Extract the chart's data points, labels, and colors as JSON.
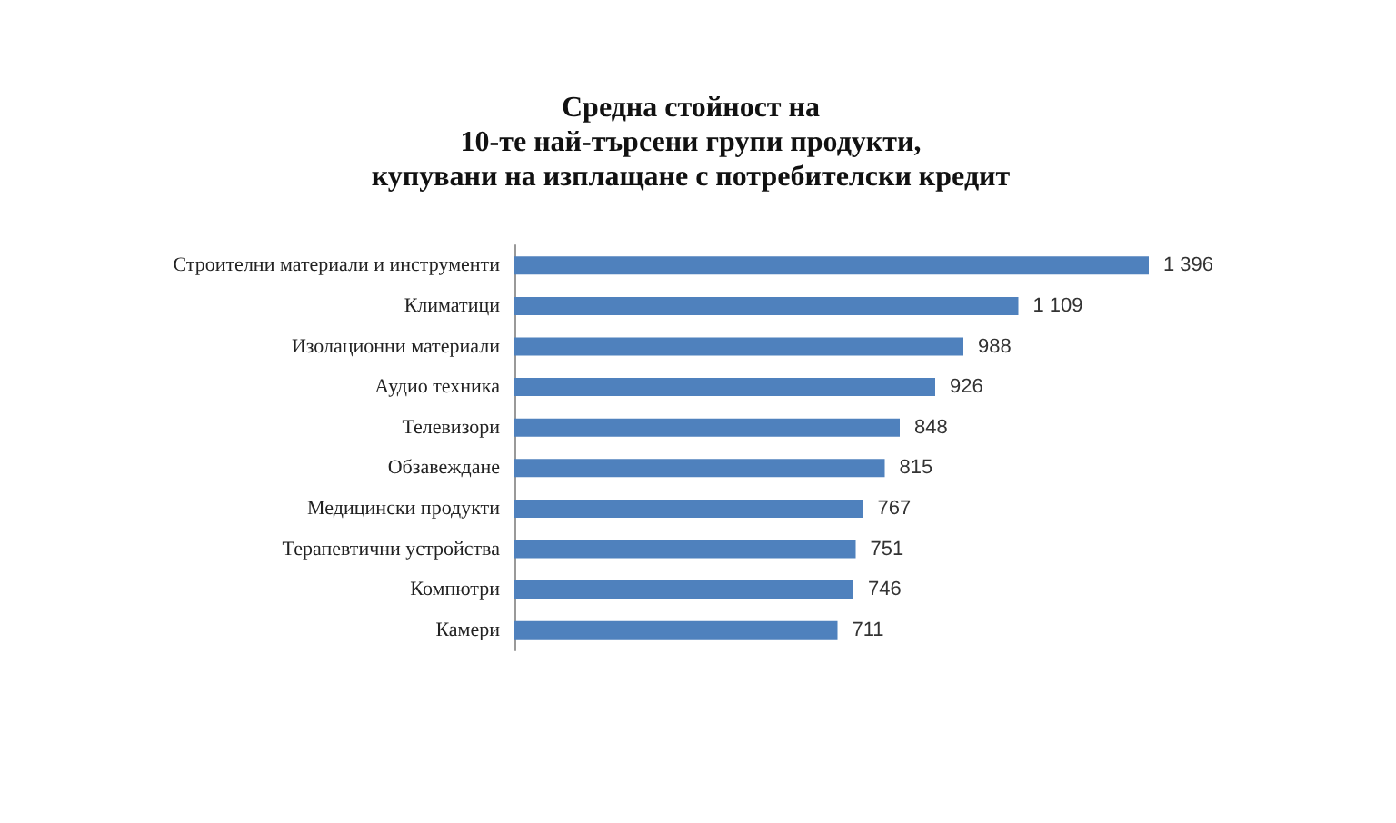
{
  "chart_data": {
    "type": "bar",
    "orientation": "horizontal",
    "title": "Средна стойност на\n10-те най-търсени групи продукти,\nкупувани на изплащане с потребителски кредит",
    "categories": [
      "Строителни материали и инструменти",
      "Климатици",
      "Изолационни материали",
      "Аудио техника",
      "Телевизори",
      "Обзавеждане",
      "Медицински продукти",
      "Терапевтични устройства",
      "Компютри",
      "Камери"
    ],
    "values": [
      1396,
      1109,
      988,
      926,
      848,
      815,
      767,
      751,
      746,
      711
    ],
    "value_labels": [
      "1 396",
      "1 109",
      "988",
      "926",
      "848",
      "815",
      "767",
      "751",
      "746",
      "711"
    ],
    "color": "#4f81bd"
  }
}
